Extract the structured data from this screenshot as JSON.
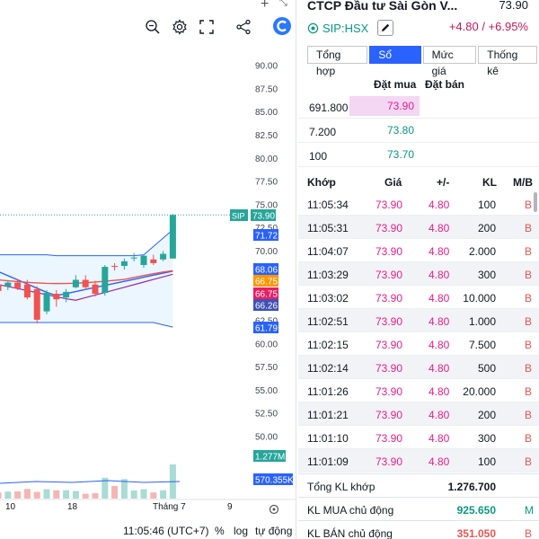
{
  "toolbar": {
    "icons": [
      "search-plus-icon",
      "gear-icon",
      "fullscreen-icon",
      "share-icon",
      "app-logo-icon"
    ],
    "top_icons": [
      "plus-icon",
      "expand-icon"
    ]
  },
  "chart": {
    "symbol_tag": "SIP",
    "date_labels": [
      "10",
      "18",
      "Tháng 7",
      "9"
    ],
    "footer": {
      "time": "11:05:46 (UTC+7)",
      "percent": "%",
      "log": "log",
      "auto": "tự động"
    },
    "colors": {
      "up": "#26a69a",
      "down": "#ef5350",
      "upper_band": "#2962ff",
      "ma_red": "#ef5350",
      "ma_blue": "#2962ff",
      "ma_purple": "#9c27b0"
    }
  },
  "chart_data": {
    "type": "candlestick",
    "price_axis": [
      "90.00",
      "87.50",
      "85.00",
      "82.50",
      "80.00",
      "77.50",
      "75.00",
      "72.50",
      "70.00",
      "67.50",
      "65.00",
      "62.50",
      "60.00",
      "57.50",
      "55.00",
      "52.50",
      "50.00"
    ],
    "ylim": [
      48.75,
      92.0
    ],
    "price_badges": [
      {
        "value": "73.90",
        "color": "#26a69a",
        "tag": "SIP"
      },
      {
        "value": "71.72",
        "color": "#2962ff"
      },
      {
        "value": "68.06",
        "color": "#2962ff"
      },
      {
        "value": "66.75",
        "color": "#ff9800"
      },
      {
        "value": "66.75",
        "color": "#e91e63"
      },
      {
        "value": "66.26",
        "color": "#3f51b5"
      },
      {
        "value": "61.79",
        "color": "#2962ff"
      }
    ],
    "volume_badges": [
      {
        "value": "1.277M",
        "color": "#26a69a"
      },
      {
        "value": "570.355K",
        "color": "#2962ff"
      }
    ],
    "candles": [
      {
        "o": 66.4,
        "h": 66.8,
        "l": 65.6,
        "c": 65.7
      },
      {
        "o": 66.2,
        "h": 66.8,
        "l": 65.8,
        "c": 66.6
      },
      {
        "o": 66.6,
        "h": 67.0,
        "l": 65.8,
        "c": 66.0
      },
      {
        "o": 66.4,
        "h": 66.9,
        "l": 64.8,
        "c": 65.0
      },
      {
        "o": 65.9,
        "h": 66.2,
        "l": 62.2,
        "c": 62.6
      },
      {
        "o": 63.5,
        "h": 65.8,
        "l": 63.2,
        "c": 65.5
      },
      {
        "o": 65.4,
        "h": 65.8,
        "l": 64.0,
        "c": 64.8
      },
      {
        "o": 65.0,
        "h": 65.9,
        "l": 64.5,
        "c": 65.6
      },
      {
        "o": 66.1,
        "h": 67.4,
        "l": 66.0,
        "c": 66.9
      },
      {
        "o": 66.9,
        "h": 67.4,
        "l": 65.8,
        "c": 66.1
      },
      {
        "o": 66.4,
        "h": 66.8,
        "l": 65.1,
        "c": 65.4
      },
      {
        "o": 65.5,
        "h": 68.5,
        "l": 65.2,
        "c": 68.3
      },
      {
        "o": 68.4,
        "h": 68.7,
        "l": 67.9,
        "c": 68.3
      },
      {
        "o": 68.4,
        "h": 69.2,
        "l": 68.0,
        "c": 68.9
      },
      {
        "o": 69.3,
        "h": 69.8,
        "l": 68.9,
        "c": 69.3
      },
      {
        "o": 68.5,
        "h": 69.6,
        "l": 68.2,
        "c": 69.5
      },
      {
        "o": 69.1,
        "h": 69.6,
        "l": 68.5,
        "c": 68.7
      },
      {
        "o": 69.1,
        "h": 70.0,
        "l": 68.9,
        "c": 69.7
      },
      {
        "o": 69.2,
        "h": 74.0,
        "l": 69.2,
        "c": 73.9
      }
    ],
    "volumes": [
      0.23,
      0.26,
      0.27,
      0.36,
      0.25,
      0.35,
      0.31,
      0.31,
      0.28,
      0.18,
      0.2,
      0.78,
      0.47,
      0.73,
      0.3,
      0.35,
      0.23,
      0.31,
      1.277
    ]
  },
  "stock": {
    "name": "CTCP Đầu tư Sài Gòn V...",
    "price": "73.90",
    "symbol": "SIP:HSX",
    "change": "+4.80 / +6.95%"
  },
  "tabs": [
    "Tổng hợp",
    "Sổ lệnh",
    "Mức giá",
    "Thống kê"
  ],
  "orderbook": {
    "bid_header": "Đặt mua",
    "ask_header": "Đặt bán",
    "rows": [
      {
        "vol": "691.800",
        "price": "73.90",
        "color": "#e91e8c",
        "bg": "#f3d7f3"
      },
      {
        "vol": "7.200",
        "price": "73.80",
        "color": "#089981",
        "bg": ""
      },
      {
        "vol": "100",
        "price": "73.70",
        "color": "#089981",
        "bg": ""
      }
    ]
  },
  "trades": {
    "headers": {
      "time": "Khớp",
      "price": "Giá",
      "change": "+/-",
      "vol": "KL",
      "side": "M/B"
    },
    "rows": [
      {
        "time": "11:05:34",
        "price": "73.90",
        "change": "4.80",
        "vol": "100",
        "side": "B"
      },
      {
        "time": "11:05:31",
        "price": "73.90",
        "change": "4.80",
        "vol": "200",
        "side": "B"
      },
      {
        "time": "11:04:07",
        "price": "73.90",
        "change": "4.80",
        "vol": "2.000",
        "side": "B"
      },
      {
        "time": "11:03:29",
        "price": "73.90",
        "change": "4.80",
        "vol": "300",
        "side": "B"
      },
      {
        "time": "11:03:02",
        "price": "73.90",
        "change": "4.80",
        "vol": "10.000",
        "side": "B"
      },
      {
        "time": "11:02:51",
        "price": "73.90",
        "change": "4.80",
        "vol": "1.000",
        "side": "B"
      },
      {
        "time": "11:02:15",
        "price": "73.90",
        "change": "4.80",
        "vol": "7.500",
        "side": "B"
      },
      {
        "time": "11:02:14",
        "price": "73.90",
        "change": "4.80",
        "vol": "500",
        "side": "B"
      },
      {
        "time": "11:01:26",
        "price": "73.90",
        "change": "4.80",
        "vol": "20.000",
        "side": "B"
      },
      {
        "time": "11:01:21",
        "price": "73.90",
        "change": "4.80",
        "vol": "200",
        "side": "B"
      },
      {
        "time": "11:01:10",
        "price": "73.90",
        "change": "4.80",
        "vol": "300",
        "side": "B"
      },
      {
        "time": "11:01:09",
        "price": "73.90",
        "change": "4.80",
        "vol": "100",
        "side": "B"
      }
    ]
  },
  "summary": [
    {
      "label": "Tổng KL khớp",
      "value": "1.276.700",
      "side": "",
      "color": "#131722"
    },
    {
      "label": "KL MUA chủ động",
      "value": "925.650",
      "side": "M",
      "color": "#089981"
    },
    {
      "label": "KL BÁN chủ động",
      "value": "351.050",
      "side": "B",
      "color": "#ef5350"
    }
  ]
}
